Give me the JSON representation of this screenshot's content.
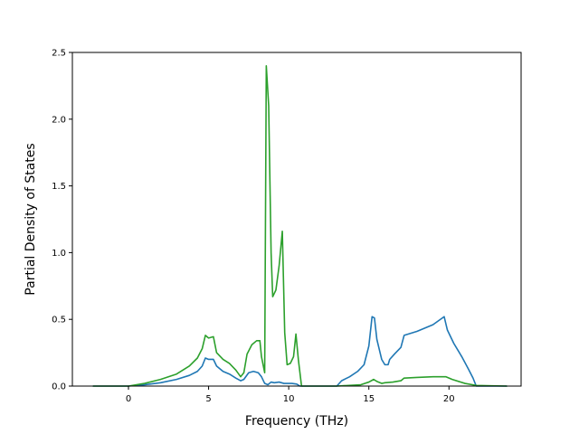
{
  "chart_data": {
    "type": "line",
    "xlabel": "Frequency (THz)",
    "ylabel": "Partial Density of States",
    "xlim": [
      -3.5,
      24.5
    ],
    "ylim": [
      0,
      2.5
    ],
    "x_ticks": [
      0,
      5,
      10,
      15,
      20
    ],
    "x_tick_labels": [
      "0",
      "5",
      "10",
      "15",
      "20"
    ],
    "y_ticks": [
      0.0,
      0.5,
      1.0,
      1.5,
      2.0,
      2.5
    ],
    "y_tick_labels": [
      "0.0",
      "0.5",
      "1.0",
      "1.5",
      "2.0",
      "2.5"
    ],
    "grid": false,
    "series": [
      {
        "color": "#1f77b4",
        "points": [
          [
            -2.2,
            0
          ],
          [
            0,
            0
          ],
          [
            1,
            0.01
          ],
          [
            2,
            0.025
          ],
          [
            3,
            0.05
          ],
          [
            3.8,
            0.08
          ],
          [
            4.3,
            0.11
          ],
          [
            4.6,
            0.15
          ],
          [
            4.8,
            0.21
          ],
          [
            5,
            0.2
          ],
          [
            5.3,
            0.2
          ],
          [
            5.5,
            0.15
          ],
          [
            5.9,
            0.11
          ],
          [
            6.3,
            0.09
          ],
          [
            6.7,
            0.06
          ],
          [
            7,
            0.04
          ],
          [
            7.2,
            0.05
          ],
          [
            7.5,
            0.1
          ],
          [
            7.8,
            0.11
          ],
          [
            8.1,
            0.1
          ],
          [
            8.3,
            0.07
          ],
          [
            8.5,
            0.02
          ],
          [
            8.7,
            0.01
          ],
          [
            8.9,
            0.03
          ],
          [
            9.1,
            0.025
          ],
          [
            9.4,
            0.03
          ],
          [
            9.7,
            0.02
          ],
          [
            10.2,
            0.02
          ],
          [
            10.5,
            0.015
          ],
          [
            10.7,
            0
          ],
          [
            13,
            0
          ],
          [
            13.3,
            0.04
          ],
          [
            13.8,
            0.07
          ],
          [
            14.3,
            0.11
          ],
          [
            14.7,
            0.16
          ],
          [
            15,
            0.3
          ],
          [
            15.2,
            0.52
          ],
          [
            15.35,
            0.51
          ],
          [
            15.5,
            0.35
          ],
          [
            15.8,
            0.2
          ],
          [
            16,
            0.16
          ],
          [
            16.2,
            0.16
          ],
          [
            16.3,
            0.2
          ],
          [
            16.6,
            0.24
          ],
          [
            17,
            0.29
          ],
          [
            17.2,
            0.38
          ],
          [
            18,
            0.41
          ],
          [
            19,
            0.46
          ],
          [
            19.7,
            0.52
          ],
          [
            19.9,
            0.42
          ],
          [
            20.3,
            0.32
          ],
          [
            20.8,
            0.22
          ],
          [
            21.2,
            0.13
          ],
          [
            21.5,
            0.06
          ],
          [
            21.7,
            0
          ],
          [
            23.6,
            0
          ]
        ]
      },
      {
        "color": "#2ca02c",
        "points": [
          [
            -2.2,
            0
          ],
          [
            0,
            0
          ],
          [
            1,
            0.02
          ],
          [
            2,
            0.05
          ],
          [
            3,
            0.09
          ],
          [
            3.8,
            0.15
          ],
          [
            4.3,
            0.21
          ],
          [
            4.6,
            0.28
          ],
          [
            4.8,
            0.38
          ],
          [
            5,
            0.36
          ],
          [
            5.3,
            0.37
          ],
          [
            5.5,
            0.25
          ],
          [
            5.9,
            0.2
          ],
          [
            6.3,
            0.17
          ],
          [
            6.7,
            0.12
          ],
          [
            7,
            0.07
          ],
          [
            7.2,
            0.1
          ],
          [
            7.4,
            0.24
          ],
          [
            7.7,
            0.31
          ],
          [
            8,
            0.34
          ],
          [
            8.2,
            0.34
          ],
          [
            8.3,
            0.22
          ],
          [
            8.5,
            0.1
          ],
          [
            8.6,
            2.4
          ],
          [
            8.75,
            2.1
          ],
          [
            8.9,
            1.0
          ],
          [
            9.0,
            0.67
          ],
          [
            9.2,
            0.72
          ],
          [
            9.4,
            0.9
          ],
          [
            9.6,
            1.16
          ],
          [
            9.75,
            0.4
          ],
          [
            9.9,
            0.16
          ],
          [
            10.1,
            0.17
          ],
          [
            10.3,
            0.22
          ],
          [
            10.45,
            0.39
          ],
          [
            10.6,
            0.2
          ],
          [
            10.8,
            0
          ],
          [
            13,
            0
          ],
          [
            14.5,
            0.01
          ],
          [
            15,
            0.03
          ],
          [
            15.3,
            0.05
          ],
          [
            15.5,
            0.035
          ],
          [
            15.8,
            0.02
          ],
          [
            16,
            0.025
          ],
          [
            16.5,
            0.03
          ],
          [
            17,
            0.04
          ],
          [
            17.2,
            0.06
          ],
          [
            18,
            0.065
          ],
          [
            19,
            0.07
          ],
          [
            19.8,
            0.07
          ],
          [
            20.2,
            0.05
          ],
          [
            21,
            0.02
          ],
          [
            21.7,
            0.005
          ],
          [
            23.6,
            0
          ]
        ]
      }
    ]
  }
}
